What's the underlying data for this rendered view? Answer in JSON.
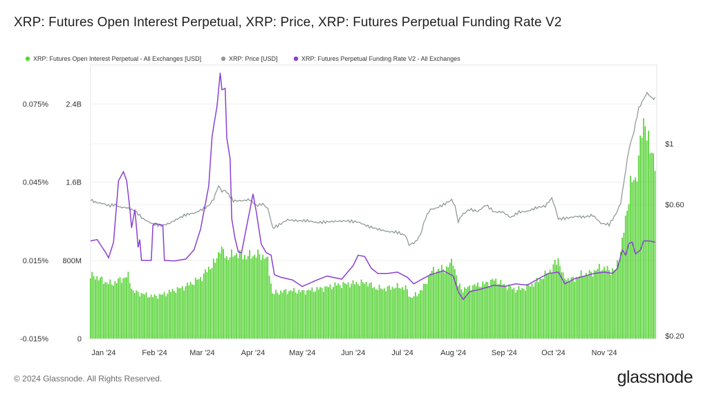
{
  "title": "XRP: Futures Open Interest Perpetual, XRP: Price, XRP: Futures Perpetual Funding Rate V2",
  "footer": {
    "copyright": "© 2024 Glassnode. All Rights Reserved.",
    "brand": "glassnode"
  },
  "colors": {
    "oi": "#5ad43a",
    "price": "#8f9a95",
    "funding": "#8a3fd0"
  },
  "chart_data": {
    "type": "line",
    "legend": [
      {
        "name": "XRP: Futures Open Interest Perpetual - All Exchanges [USD]",
        "color": "#5ad43a"
      },
      {
        "name": "XRP: Price [USD]",
        "color": "#8f9a95"
      },
      {
        "name": "XRP: Futures Perpetual Funding Rate V2 - All Exchanges",
        "color": "#8a3fd0"
      }
    ],
    "legend_placement": "top-left",
    "grid": true,
    "x_ticks": [
      "Jan '24",
      "Feb '24",
      "Mar '24",
      "Apr '24",
      "May '24",
      "Jun '24",
      "Jul '24",
      "Aug '24",
      "Sep '24",
      "Oct '24",
      "Nov '24"
    ],
    "x_range": [
      "2023-12-24",
      "2024-12-03"
    ],
    "y_funding_ticks": [
      "0.075%",
      "0.045%",
      "0.015%",
      "-0.015%"
    ],
    "y_oi_ticks": [
      "2.4B",
      "1.6B",
      "800M",
      "0"
    ],
    "y_price_ticks": [
      "$1",
      "$0.60",
      "$0.20"
    ],
    "y_funding_range": [
      -0.015,
      0.09
    ],
    "y_oi_range": [
      0,
      2.8
    ],
    "y_price_scale": "log",
    "series": [
      {
        "name": "XRP: Futures Open Interest Perpetual - All Exchanges [USD]",
        "unit": "USD billions",
        "points": [
          [
            "2023-12-24",
            0.64
          ],
          [
            "2023-12-28",
            0.63
          ],
          [
            "2024-01-02",
            0.58
          ],
          [
            "2024-01-06",
            0.56
          ],
          [
            "2024-01-12",
            0.61
          ],
          [
            "2024-01-16",
            0.64
          ],
          [
            "2024-01-19",
            0.48
          ],
          [
            "2024-01-24",
            0.46
          ],
          [
            "2024-01-31",
            0.43
          ],
          [
            "2024-02-06",
            0.45
          ],
          [
            "2024-02-12",
            0.49
          ],
          [
            "2024-02-18",
            0.52
          ],
          [
            "2024-02-24",
            0.57
          ],
          [
            "2024-03-01",
            0.63
          ],
          [
            "2024-03-05",
            0.72
          ],
          [
            "2024-03-09",
            0.78
          ],
          [
            "2024-03-12",
            0.93
          ],
          [
            "2024-03-16",
            0.83
          ],
          [
            "2024-03-22",
            0.87
          ],
          [
            "2024-03-28",
            0.84
          ],
          [
            "2024-04-03",
            0.86
          ],
          [
            "2024-04-08",
            0.84
          ],
          [
            "2024-04-10",
            0.79
          ],
          [
            "2024-04-13",
            0.46
          ],
          [
            "2024-04-18",
            0.48
          ],
          [
            "2024-04-25",
            0.49
          ],
          [
            "2024-05-01",
            0.48
          ],
          [
            "2024-05-08",
            0.5
          ],
          [
            "2024-05-15",
            0.52
          ],
          [
            "2024-05-22",
            0.55
          ],
          [
            "2024-05-29",
            0.56
          ],
          [
            "2024-06-05",
            0.57
          ],
          [
            "2024-06-10",
            0.57
          ],
          [
            "2024-06-14",
            0.52
          ],
          [
            "2024-06-20",
            0.51
          ],
          [
            "2024-06-27",
            0.53
          ],
          [
            "2024-07-03",
            0.52
          ],
          [
            "2024-07-06",
            0.42
          ],
          [
            "2024-07-10",
            0.45
          ],
          [
            "2024-07-15",
            0.55
          ],
          [
            "2024-07-18",
            0.68
          ],
          [
            "2024-07-22",
            0.7
          ],
          [
            "2024-07-28",
            0.72
          ],
          [
            "2024-08-01",
            0.8
          ],
          [
            "2024-08-04",
            0.55
          ],
          [
            "2024-08-07",
            0.5
          ],
          [
            "2024-08-13",
            0.54
          ],
          [
            "2024-08-20",
            0.56
          ],
          [
            "2024-08-26",
            0.6
          ],
          [
            "2024-09-01",
            0.55
          ],
          [
            "2024-09-08",
            0.5
          ],
          [
            "2024-09-14",
            0.52
          ],
          [
            "2024-09-20",
            0.57
          ],
          [
            "2024-09-26",
            0.65
          ],
          [
            "2024-09-30",
            0.71
          ],
          [
            "2024-10-04",
            0.82
          ],
          [
            "2024-10-07",
            0.63
          ],
          [
            "2024-10-12",
            0.6
          ],
          [
            "2024-10-18",
            0.65
          ],
          [
            "2024-10-24",
            0.67
          ],
          [
            "2024-10-30",
            0.73
          ],
          [
            "2024-11-04",
            0.7
          ],
          [
            "2024-11-08",
            0.7
          ],
          [
            "2024-11-11",
            0.9
          ],
          [
            "2024-11-14",
            1.2
          ],
          [
            "2024-11-17",
            1.6
          ],
          [
            "2024-11-20",
            1.6
          ],
          [
            "2024-11-23",
            2.0
          ],
          [
            "2024-11-26",
            2.25
          ],
          [
            "2024-11-29",
            1.9
          ],
          [
            "2024-12-02",
            1.85
          ]
        ]
      },
      {
        "name": "XRP: Price [USD]",
        "unit": "USD",
        "points": [
          [
            "2023-12-24",
            0.625
          ],
          [
            "2023-12-27",
            0.612
          ],
          [
            "2024-01-01",
            0.605
          ],
          [
            "2024-01-04",
            0.595
          ],
          [
            "2024-01-08",
            0.6
          ],
          [
            "2024-01-11",
            0.587
          ],
          [
            "2024-01-15",
            0.585
          ],
          [
            "2024-01-20",
            0.57
          ],
          [
            "2024-01-25",
            0.533
          ],
          [
            "2024-01-31",
            0.51
          ],
          [
            "2024-02-05",
            0.503
          ],
          [
            "2024-02-10",
            0.513
          ],
          [
            "2024-02-15",
            0.533
          ],
          [
            "2024-02-20",
            0.552
          ],
          [
            "2024-02-26",
            0.561
          ],
          [
            "2024-03-01",
            0.577
          ],
          [
            "2024-03-05",
            0.595
          ],
          [
            "2024-03-08",
            0.629
          ],
          [
            "2024-03-11",
            0.704
          ],
          [
            "2024-03-13",
            0.67
          ],
          [
            "2024-03-15",
            0.677
          ],
          [
            "2024-03-20",
            0.62
          ],
          [
            "2024-03-25",
            0.62
          ],
          [
            "2024-03-30",
            0.626
          ],
          [
            "2024-04-03",
            0.595
          ],
          [
            "2024-04-07",
            0.604
          ],
          [
            "2024-04-10",
            0.58
          ],
          [
            "2024-04-13",
            0.493
          ],
          [
            "2024-04-17",
            0.507
          ],
          [
            "2024-04-22",
            0.529
          ],
          [
            "2024-04-28",
            0.524
          ],
          [
            "2024-05-04",
            0.525
          ],
          [
            "2024-05-10",
            0.516
          ],
          [
            "2024-05-15",
            0.519
          ],
          [
            "2024-05-21",
            0.522
          ],
          [
            "2024-05-28",
            0.524
          ],
          [
            "2024-06-04",
            0.519
          ],
          [
            "2024-06-10",
            0.501
          ],
          [
            "2024-06-16",
            0.489
          ],
          [
            "2024-06-22",
            0.479
          ],
          [
            "2024-06-28",
            0.476
          ],
          [
            "2024-07-03",
            0.463
          ],
          [
            "2024-07-05",
            0.428
          ],
          [
            "2024-07-09",
            0.439
          ],
          [
            "2024-07-12",
            0.467
          ],
          [
            "2024-07-15",
            0.536
          ],
          [
            "2024-07-18",
            0.577
          ],
          [
            "2024-07-21",
            0.581
          ],
          [
            "2024-07-26",
            0.6
          ],
          [
            "2024-07-31",
            0.625
          ],
          [
            "2024-08-02",
            0.594
          ],
          [
            "2024-08-04",
            0.519
          ],
          [
            "2024-08-06",
            0.549
          ],
          [
            "2024-08-11",
            0.577
          ],
          [
            "2024-08-16",
            0.567
          ],
          [
            "2024-08-21",
            0.599
          ],
          [
            "2024-08-26",
            0.564
          ],
          [
            "2024-08-31",
            0.565
          ],
          [
            "2024-09-05",
            0.539
          ],
          [
            "2024-09-10",
            0.564
          ],
          [
            "2024-09-15",
            0.567
          ],
          [
            "2024-09-21",
            0.586
          ],
          [
            "2024-09-26",
            0.593
          ],
          [
            "2024-09-30",
            0.634
          ],
          [
            "2024-10-02",
            0.587
          ],
          [
            "2024-10-04",
            0.532
          ],
          [
            "2024-10-10",
            0.537
          ],
          [
            "2024-10-15",
            0.544
          ],
          [
            "2024-10-20",
            0.541
          ],
          [
            "2024-10-25",
            0.549
          ],
          [
            "2024-10-30",
            0.513
          ],
          [
            "2024-11-04",
            0.508
          ],
          [
            "2024-11-08",
            0.554
          ],
          [
            "2024-11-11",
            0.608
          ],
          [
            "2024-11-13",
            0.726
          ],
          [
            "2024-11-16",
            0.953
          ],
          [
            "2024-11-19",
            1.104
          ],
          [
            "2024-11-22",
            1.345
          ],
          [
            "2024-11-24",
            1.418
          ],
          [
            "2024-11-27",
            1.532
          ],
          [
            "2024-11-30",
            1.464
          ],
          [
            "2024-12-02",
            1.458
          ]
        ]
      },
      {
        "name": "XRP: Futures Perpetual Funding Rate V2 - All Exchanges",
        "unit": "percent",
        "points": [
          [
            "2023-12-24",
            0.0225
          ],
          [
            "2023-12-28",
            0.023
          ],
          [
            "2024-01-02",
            0.0182
          ],
          [
            "2024-01-04",
            0.016
          ],
          [
            "2024-01-07",
            0.022
          ],
          [
            "2024-01-10",
            0.0455
          ],
          [
            "2024-01-13",
            0.049
          ],
          [
            "2024-01-15",
            0.0455
          ],
          [
            "2024-01-17",
            0.0345
          ],
          [
            "2024-01-18",
            0.0275
          ],
          [
            "2024-01-20",
            0.0345
          ],
          [
            "2024-01-22",
            0.02
          ],
          [
            "2024-01-23",
            0.023
          ],
          [
            "2024-01-24",
            0.015
          ],
          [
            "2024-01-30",
            0.015
          ],
          [
            "2024-01-31",
            0.0285
          ],
          [
            "2024-02-01",
            0.0292
          ],
          [
            "2024-02-06",
            0.0285
          ],
          [
            "2024-02-07",
            0.015
          ],
          [
            "2024-02-13",
            0.0148
          ],
          [
            "2024-02-20",
            0.0155
          ],
          [
            "2024-02-25",
            0.019
          ],
          [
            "2024-02-29",
            0.027
          ],
          [
            "2024-03-05",
            0.0435
          ],
          [
            "2024-03-07",
            0.0625
          ],
          [
            "2024-03-10",
            0.074
          ],
          [
            "2024-03-12",
            0.087
          ],
          [
            "2024-03-13",
            0.0805
          ],
          [
            "2024-03-15",
            0.081
          ],
          [
            "2024-03-16",
            0.062
          ],
          [
            "2024-03-18",
            0.054
          ],
          [
            "2024-03-19",
            0.031
          ],
          [
            "2024-03-21",
            0.0235
          ],
          [
            "2024-03-23",
            0.0182
          ],
          [
            "2024-03-25",
            0.018
          ],
          [
            "2024-03-29",
            0.031
          ],
          [
            "2024-04-01",
            0.0405
          ],
          [
            "2024-04-03",
            0.0335
          ],
          [
            "2024-04-06",
            0.0212
          ],
          [
            "2024-04-09",
            0.018
          ],
          [
            "2024-04-12",
            0.017
          ],
          [
            "2024-04-14",
            0.0095
          ],
          [
            "2024-04-18",
            0.0085
          ],
          [
            "2024-04-25",
            0.0075
          ],
          [
            "2024-05-01",
            0.005
          ],
          [
            "2024-05-10",
            0.0075
          ],
          [
            "2024-05-16",
            0.009
          ],
          [
            "2024-05-25",
            0.0078
          ],
          [
            "2024-06-01",
            0.013
          ],
          [
            "2024-06-04",
            0.017
          ],
          [
            "2024-06-08",
            0.0165
          ],
          [
            "2024-06-12",
            0.012
          ],
          [
            "2024-06-16",
            0.01
          ],
          [
            "2024-06-22",
            0.01
          ],
          [
            "2024-06-28",
            0.0105
          ],
          [
            "2024-07-04",
            0.0085
          ],
          [
            "2024-07-08",
            0.006
          ],
          [
            "2024-07-12",
            0.0075
          ],
          [
            "2024-07-18",
            0.0095
          ],
          [
            "2024-07-26",
            0.011
          ],
          [
            "2024-08-01",
            0.009
          ],
          [
            "2024-08-04",
            0.003
          ],
          [
            "2024-08-07",
            0.0
          ],
          [
            "2024-08-11",
            0.003
          ],
          [
            "2024-08-18",
            0.004
          ],
          [
            "2024-08-26",
            0.0055
          ],
          [
            "2024-09-01",
            0.005
          ],
          [
            "2024-09-08",
            0.006
          ],
          [
            "2024-09-15",
            0.0055
          ],
          [
            "2024-09-22",
            0.008
          ],
          [
            "2024-09-28",
            0.01
          ],
          [
            "2024-10-04",
            0.0105
          ],
          [
            "2024-10-08",
            0.006
          ],
          [
            "2024-10-14",
            0.008
          ],
          [
            "2024-10-20",
            0.009
          ],
          [
            "2024-10-26",
            0.01
          ],
          [
            "2024-11-01",
            0.0105
          ],
          [
            "2024-11-06",
            0.01
          ],
          [
            "2024-11-09",
            0.012
          ],
          [
            "2024-11-12",
            0.019
          ],
          [
            "2024-11-14",
            0.017
          ],
          [
            "2024-11-16",
            0.0215
          ],
          [
            "2024-11-18",
            0.022
          ],
          [
            "2024-11-20",
            0.0175
          ],
          [
            "2024-11-23",
            0.019
          ],
          [
            "2024-11-25",
            0.0225
          ],
          [
            "2024-11-28",
            0.0225
          ],
          [
            "2024-12-02",
            0.022
          ]
        ]
      }
    ]
  }
}
